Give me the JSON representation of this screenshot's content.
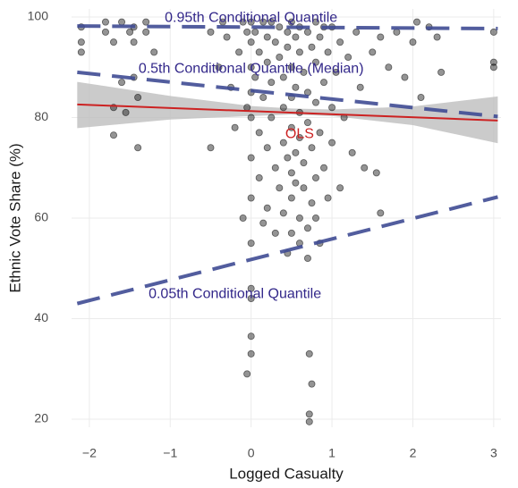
{
  "chart_data": {
    "type": "scatter",
    "x_label": "Logged Casualty",
    "y_label": "Ethnic Vote Share (%)",
    "xlim": [
      -2.22,
      3.09
    ],
    "ylim": [
      18.4,
      101.6
    ],
    "xticks": [
      {
        "value": -2,
        "label": "−2"
      },
      {
        "value": -1,
        "label": "−1"
      },
      0,
      1,
      2,
      3
    ],
    "yticks": [
      20,
      40,
      60,
      80,
      100
    ],
    "grid": true,
    "point_color": "#000000",
    "x": [
      -2.1,
      -2.1,
      -2.1,
      -1.8,
      -1.8,
      -1.7,
      -1.7,
      -1.7,
      -1.6,
      -1.6,
      -1.55,
      -1.5,
      -1.45,
      -1.45,
      -1.45,
      -1.4,
      -1.4,
      -1.3,
      -1.3,
      -1.2,
      -0.5,
      -0.5,
      -0.4,
      -0.35,
      -0.3,
      -0.25,
      -0.2,
      -0.15,
      -0.1,
      -0.1,
      -0.05,
      -0.05,
      0,
      0,
      0,
      0,
      0,
      0,
      0,
      0,
      0,
      0,
      0,
      0.05,
      0.05,
      0.1,
      0.1,
      0.1,
      0.15,
      0.15,
      0.15,
      0.2,
      0.2,
      0.2,
      0.2,
      0.25,
      0.25,
      0.25,
      0.3,
      0.3,
      0.3,
      0.35,
      0.35,
      0.35,
      0.4,
      0.4,
      0.4,
      0.4,
      0.45,
      0.45,
      0.45,
      0.45,
      0.5,
      0.5,
      0.5,
      0.5,
      0.5,
      0.5,
      0.5,
      0.55,
      0.55,
      0.55,
      0.55,
      0.6,
      0.6,
      0.6,
      0.6,
      0.6,
      0.6,
      0.65,
      0.65,
      0.65,
      0.7,
      0.7,
      0.7,
      0.7,
      0.7,
      0.72,
      0.72,
      0.72,
      0.75,
      0.75,
      0.75,
      0.75,
      0.8,
      0.8,
      0.8,
      0.8,
      0.8,
      0.85,
      0.85,
      0.85,
      0.9,
      0.9,
      0.9,
      0.95,
      0.95,
      1.0,
      1.0,
      1.0,
      1.05,
      1.1,
      1.1,
      1.15,
      1.2,
      1.25,
      1.3,
      1.35,
      1.4,
      1.5,
      1.55,
      1.6,
      1.6,
      1.7,
      1.8,
      1.9,
      2.0,
      2.05,
      2.1,
      2.2,
      2.3,
      2.35,
      3.0,
      3.0,
      3.0,
      -0.05,
      0
    ],
    "y": [
      95,
      93,
      98,
      99,
      97,
      95,
      82,
      76.5,
      99,
      87,
      81,
      97,
      98,
      95,
      88,
      84,
      74,
      99,
      97,
      93,
      97,
      74,
      90,
      99,
      96,
      86,
      78,
      93,
      99,
      60,
      97,
      82,
      99,
      95,
      90,
      85,
      80,
      72,
      64,
      55,
      46,
      36.5,
      33,
      97,
      88,
      93,
      77,
      68,
      99,
      84,
      59,
      96,
      91,
      74,
      62,
      99,
      87,
      80,
      95,
      70,
      57,
      98,
      92,
      66,
      88,
      82,
      75,
      61,
      97,
      94,
      72,
      53,
      99,
      90,
      84,
      78,
      69,
      64,
      57,
      96,
      86,
      73,
      67,
      98,
      93,
      81,
      76,
      60,
      55,
      89,
      71,
      66,
      97,
      85,
      79,
      58,
      52,
      21,
      19.5,
      33,
      94,
      74,
      63,
      27,
      99,
      91,
      83,
      68,
      60,
      96,
      77,
      55,
      98,
      87,
      70,
      93,
      64,
      98,
      82,
      75,
      89,
      95,
      66,
      80,
      92,
      73,
      97,
      86,
      70,
      93,
      69,
      61,
      96,
      90,
      97,
      88,
      95,
      99,
      84,
      98,
      96,
      89,
      97,
      91,
      90,
      29,
      44
    ],
    "lines": [
      {
        "x": [
          -2.15,
          3.05
        ],
        "y": [
          98.2,
          97.7
        ],
        "color": "#3f4b94",
        "dashed": true
      },
      {
        "x": [
          -2.15,
          3.05
        ],
        "y": [
          89,
          80.2
        ],
        "color": "#3f4b94",
        "dashed": true
      },
      {
        "x": [
          -2.15,
          3.05
        ],
        "y": [
          43,
          64.2
        ],
        "color": "#3f4b94",
        "dashed": true
      },
      {
        "x": [
          -2.15,
          3.05
        ],
        "y": [
          82.6,
          79.4
        ],
        "color": "#cc2222",
        "dashed": false
      }
    ],
    "ci_band": {
      "x": [
        -2.15,
        -1,
        0,
        0.5,
        1,
        2,
        3.05
      ],
      "lower": [
        77.9,
        79.6,
        80.3,
        80.6,
        80.3,
        78.5,
        74.9
      ],
      "upper": [
        87.1,
        84.3,
        82.3,
        81.8,
        81.6,
        82.2,
        84.2
      ],
      "color": "#bebebe"
    },
    "annotations": [
      {
        "text": "0.95th Conditional Quantile",
        "x": 0,
        "y": 99.8,
        "color": "#33288a"
      },
      {
        "text": "0.5th Conditional Quantile (Median)",
        "x": 0,
        "y": 89.6,
        "color": "#33288a"
      },
      {
        "text": "0.05th Conditional Quantile",
        "x": -0.2,
        "y": 44.8,
        "color": "#33288a"
      },
      {
        "text": "OLS",
        "x": 0.6,
        "y": 76.7,
        "color": "#cc2222"
      }
    ]
  }
}
